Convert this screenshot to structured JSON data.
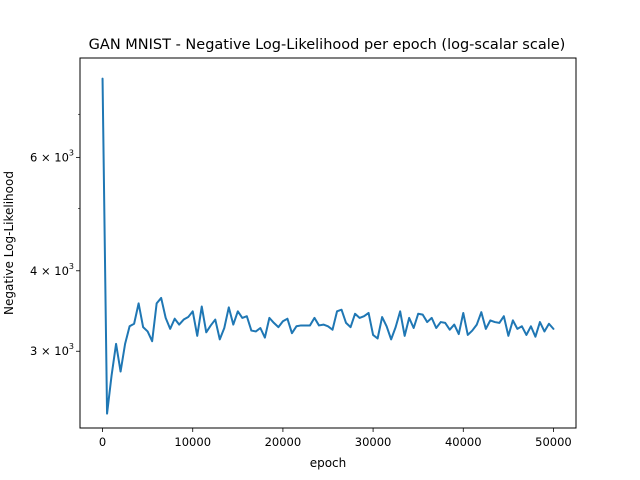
{
  "chart_data": {
    "type": "line",
    "title": "GAN MNIST - Negative Log-Likelihood per epoch (log-scalar scale)",
    "xlabel": "epoch",
    "ylabel": "Negative Log-Likelihood",
    "x_ticks": [
      0,
      10000,
      20000,
      30000,
      40000,
      50000
    ],
    "x_tick_labels": [
      "0",
      "10000",
      "20000",
      "30000",
      "40000",
      "50000"
    ],
    "y_scale": "log",
    "y_major_ticks": [
      {
        "value": 3000,
        "mantissa": "3",
        "base": "10",
        "exponent": "3"
      },
      {
        "value": 4000,
        "mantissa": "4",
        "base": "10",
        "exponent": "3"
      },
      {
        "value": 6000,
        "mantissa": "6",
        "base": "10",
        "exponent": "3"
      }
    ],
    "y_minor_ticks": [
      5000,
      7000
    ],
    "xlim": [
      -2500,
      52500
    ],
    "ylim": [
      2280,
      8560
    ],
    "grid": false,
    "color": "#1f77b4",
    "series": [
      {
        "x": [
          0,
          500,
          1000,
          1500,
          2000,
          2500,
          3000,
          3500,
          4000,
          4500,
          5000,
          5500,
          6000,
          6500,
          7000,
          7500,
          8000,
          8500,
          9000,
          9500,
          10000,
          10500,
          11000,
          11500,
          12000,
          12500,
          13000,
          13500,
          14000,
          14500,
          15000,
          15500,
          16000,
          16500,
          17000,
          17500,
          18000,
          18500,
          19000,
          19500,
          20000,
          20500,
          21000,
          21500,
          22000,
          22500,
          23000,
          23500,
          24000,
          24500,
          25000,
          25500,
          26000,
          26500,
          27000,
          27500,
          28000,
          28500,
          29000,
          29500,
          30000,
          30500,
          31000,
          31500,
          32000,
          32500,
          33000,
          33500,
          34000,
          34500,
          35000,
          35500,
          36000,
          36500,
          37000,
          37500,
          38000,
          38500,
          39000,
          39500,
          40000,
          40500,
          41000,
          41500,
          42000,
          42500,
          43000,
          43500,
          44000,
          44500,
          45000,
          45500,
          46000,
          46500,
          47000,
          47500,
          48000,
          48500,
          49000,
          49500,
          50000
        ],
        "values": [
          7950,
          2400,
          2750,
          3080,
          2790,
          3080,
          3280,
          3310,
          3560,
          3270,
          3220,
          3110,
          3560,
          3630,
          3380,
          3250,
          3370,
          3300,
          3360,
          3390,
          3460,
          3170,
          3520,
          3210,
          3290,
          3360,
          3130,
          3260,
          3510,
          3300,
          3460,
          3380,
          3400,
          3230,
          3220,
          3260,
          3150,
          3380,
          3320,
          3270,
          3340,
          3370,
          3200,
          3280,
          3290,
          3290,
          3290,
          3380,
          3290,
          3300,
          3280,
          3240,
          3460,
          3480,
          3320,
          3270,
          3430,
          3380,
          3400,
          3440,
          3180,
          3140,
          3390,
          3280,
          3130,
          3270,
          3460,
          3170,
          3380,
          3260,
          3430,
          3420,
          3330,
          3380,
          3260,
          3330,
          3320,
          3240,
          3300,
          3190,
          3440,
          3180,
          3230,
          3300,
          3450,
          3250,
          3350,
          3330,
          3320,
          3400,
          3170,
          3350,
          3250,
          3280,
          3180,
          3280,
          3160,
          3330,
          3220,
          3310,
          3250
        ]
      }
    ]
  }
}
